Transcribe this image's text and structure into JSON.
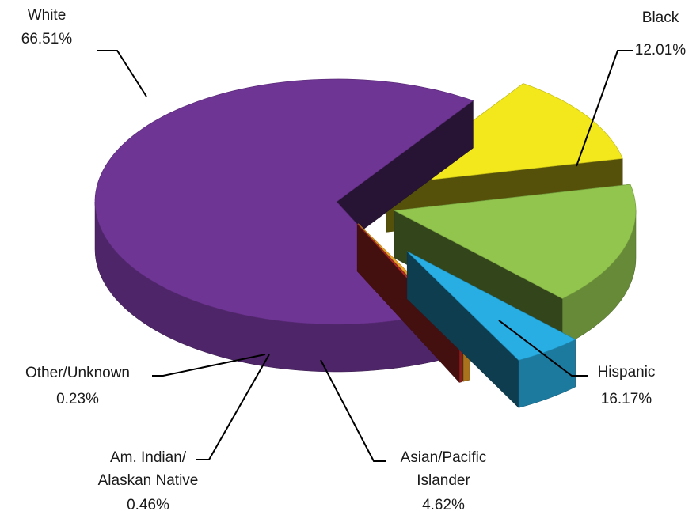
{
  "chart_data": {
    "type": "pie",
    "style": "3d-exploded",
    "legend": "none",
    "unit": "%",
    "slices": [
      {
        "name": "White",
        "value": 66.51,
        "label": "White",
        "pct": "66.51%",
        "color": "#6f3595"
      },
      {
        "name": "Black",
        "value": 12.01,
        "label": "Black",
        "pct": "12.01%",
        "color": "#f2e81c"
      },
      {
        "name": "Hispanic",
        "value": 16.17,
        "label": "Hispanic",
        "pct": "16.17%",
        "color": "#92c54e"
      },
      {
        "name": "Asian/Pacific Islander",
        "value": 4.62,
        "label": "Asian/Pacific Islander",
        "pct": "4.62%",
        "color": "#28aee3"
      },
      {
        "name": "Am. Indian/ Alaskan Native",
        "value": 0.46,
        "label": "Am. Indian/ Alaskan Native",
        "pct": "0.46%",
        "color": "#f1a52a"
      },
      {
        "name": "Other/Unknown",
        "value": 0.23,
        "label": "Other/Unknown",
        "pct": "0.23%",
        "color": "#c32b2b"
      }
    ]
  }
}
